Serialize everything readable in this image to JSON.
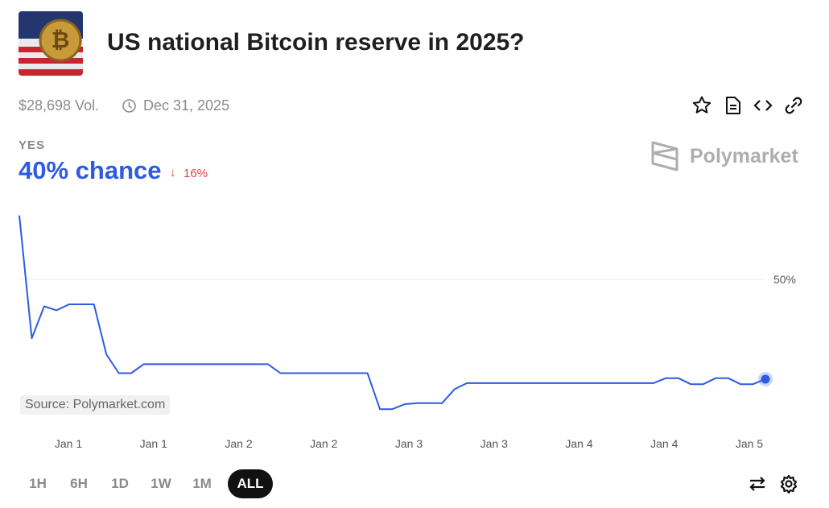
{
  "header": {
    "title": "US national Bitcoin reserve in 2025?",
    "volume": "$28,698 Vol.",
    "end_date": "Dec 31, 2025"
  },
  "outcome": {
    "label": "YES",
    "chance": "40% chance",
    "change": "16%"
  },
  "brand": "Polymarket",
  "source": "Source: Polymarket.com",
  "chart_data": {
    "type": "line",
    "x_tick_labels": [
      "Jan 1",
      "Jan 1",
      "Jan 2",
      "Jan 2",
      "Jan 3",
      "Jan 3",
      "Jan 4",
      "Jan 4",
      "Jan 5"
    ],
    "series": [
      {
        "name": "YES",
        "color": "#2d5be3",
        "values": [
          56.4,
          44.1,
          47.3,
          46.9,
          47.5,
          47.5,
          47.5,
          42.5,
          40.6,
          40.6,
          41.5,
          41.5,
          41.5,
          41.5,
          41.5,
          41.5,
          41.5,
          41.5,
          41.5,
          41.5,
          41.5,
          40.6,
          40.6,
          40.6,
          40.6,
          40.6,
          40.6,
          40.6,
          40.6,
          37.0,
          37.0,
          37.5,
          37.6,
          37.6,
          37.6,
          39.0,
          39.6,
          39.6,
          39.6,
          39.6,
          39.6,
          39.6,
          39.6,
          39.6,
          39.6,
          39.6,
          39.6,
          39.6,
          39.6,
          39.6,
          39.6,
          39.6,
          40.1,
          40.1,
          39.5,
          39.5,
          40.1,
          40.1,
          39.5,
          39.5,
          40.0
        ]
      }
    ],
    "ylim": [
      35.2,
      57.0
    ],
    "yticks": [
      {
        "value": 50,
        "label": "50%"
      }
    ],
    "grid": true
  },
  "ranges": [
    "1H",
    "6H",
    "1D",
    "1W",
    "1M",
    "ALL"
  ],
  "selected_range": "ALL"
}
